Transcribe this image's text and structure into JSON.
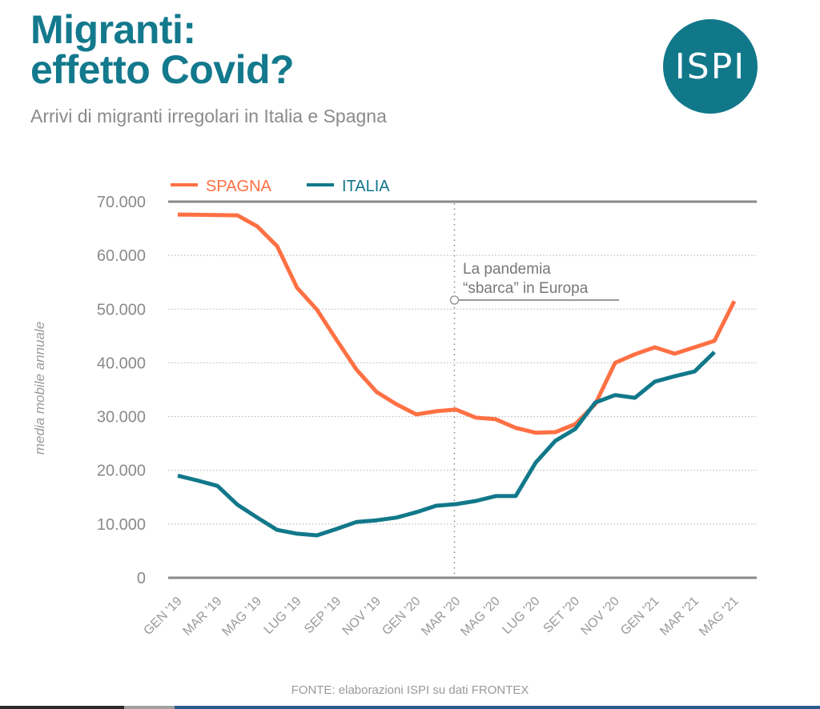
{
  "header": {
    "title_line1": "Migranti:",
    "title_line2": "effetto Covid?",
    "subtitle": "Arrivi di migranti irregolari in Italia e Spagna",
    "logo_text": "ISPI"
  },
  "footer": {
    "source": "FONTE: elaborazioni ISPI su dati FRONTEX"
  },
  "colors": {
    "title": "#13798d",
    "spagna": "#ff7043",
    "italia": "#11788a",
    "axis": "#8a8a8a",
    "grid": "#c8c8c8"
  },
  "chart_data": {
    "type": "line",
    "title": "Migranti: effetto Covid?",
    "subtitle": "Arrivi di migranti irregolari in Italia e Spagna",
    "xlabel": "",
    "ylabel": "media mobile annuale",
    "ylim": [
      0,
      70000
    ],
    "yticks": [
      0,
      10000,
      20000,
      30000,
      40000,
      50000,
      60000,
      70000
    ],
    "ytick_labels": [
      "0",
      "10.000",
      "20.000",
      "30.000",
      "40.000",
      "50.000",
      "60.000",
      "70.000"
    ],
    "grid": true,
    "legend_position": "top-left",
    "x": [
      "GEN '19",
      "FEB '19",
      "MAR '19",
      "APR '19",
      "MAG '19",
      "GIU '19",
      "LUG '19",
      "AGO '19",
      "SEP '19",
      "OTT '19",
      "NOV '19",
      "DIC '19",
      "GEN '20",
      "FEB '20",
      "MAR '20",
      "APR '20",
      "MAG '20",
      "GIU '20",
      "LUG '20",
      "AGO '20",
      "SET '20",
      "OTT '20",
      "NOV '20",
      "DIC '20",
      "GEN '21",
      "FEB '21",
      "MAR '21",
      "APR '21",
      "MAG '21"
    ],
    "xtick_labels": [
      "GEN '19",
      "MAR '19",
      "MAG '19",
      "LUG '19",
      "SEP '19",
      "NOV '19",
      "GEN '20",
      "MAR '20",
      "MAG '20",
      "LUG '20",
      "SET '20",
      "NOV '20",
      "GEN '21",
      "MAR '21",
      "MAG '21"
    ],
    "series": [
      {
        "name": "SPAGNA",
        "color": "#ff7043",
        "values": [
          67600,
          67550,
          67500,
          67450,
          65400,
          61700,
          54000,
          49900,
          44200,
          38700,
          34600,
          32300,
          30400,
          31000,
          31300,
          29800,
          29500,
          27900,
          27000,
          27100,
          28600,
          32300,
          40000,
          41600,
          42900,
          41700,
          42900,
          44100,
          51500
        ]
      },
      {
        "name": "ITALIA",
        "color": "#11788a",
        "values": [
          19000,
          18100,
          17100,
          13600,
          11200,
          8900,
          8200,
          7900,
          9100,
          10400,
          10700,
          11200,
          12200,
          13400,
          13700,
          14300,
          15200,
          15200,
          21400,
          25500,
          27700,
          32600,
          34000,
          33500,
          36500,
          37500,
          38400,
          42000,
          null
        ]
      }
    ],
    "annotation": {
      "x": "MAR '20",
      "line1": "La pandemia",
      "line2": "“sbarca” in Europa"
    }
  }
}
